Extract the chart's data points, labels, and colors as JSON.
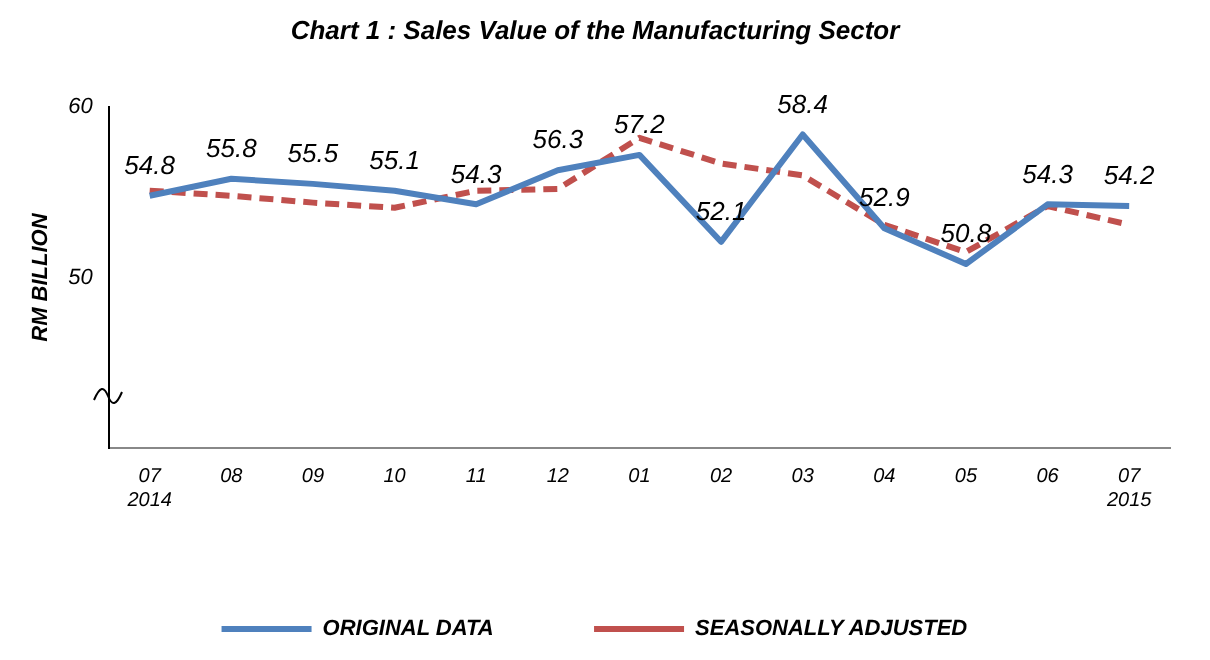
{
  "chart_data": {
    "type": "line",
    "title": "Chart 1 : Sales Value of the Manufacturing Sector",
    "ylabel": "RM BILLION",
    "categories": [
      "07\n2014",
      "08",
      "09",
      "10",
      "11",
      "12",
      "01",
      "02",
      "03",
      "04",
      "05",
      "06",
      "07\n2015"
    ],
    "series": [
      {
        "name": "ORIGINAL DATA",
        "color": "#4f81bd",
        "line_style": "solid",
        "values": [
          54.8,
          55.8,
          55.5,
          55.1,
          54.3,
          56.3,
          57.2,
          52.1,
          58.4,
          52.9,
          50.8,
          54.3,
          54.2
        ],
        "value_labels": [
          "54.8",
          "55.8",
          "55.5",
          "55.1",
          "54.3",
          "56.3",
          "57.2",
          "52.1",
          "58.4",
          "52.9",
          "50.8",
          "54.3",
          "54.2"
        ]
      },
      {
        "name": "SEASONALLY ADJUSTED",
        "color": "#c0504d",
        "line_style": "dashed",
        "values": [
          55.1,
          54.8,
          54.4,
          54.1,
          55.1,
          55.2,
          58.2,
          56.7,
          56.0,
          53.1,
          51.5,
          54.2,
          53.1
        ]
      }
    ],
    "ylim": [
      40,
      60
    ],
    "yticks": [
      50,
      60
    ],
    "grid": false,
    "legend": "bottom",
    "marker": "none"
  }
}
